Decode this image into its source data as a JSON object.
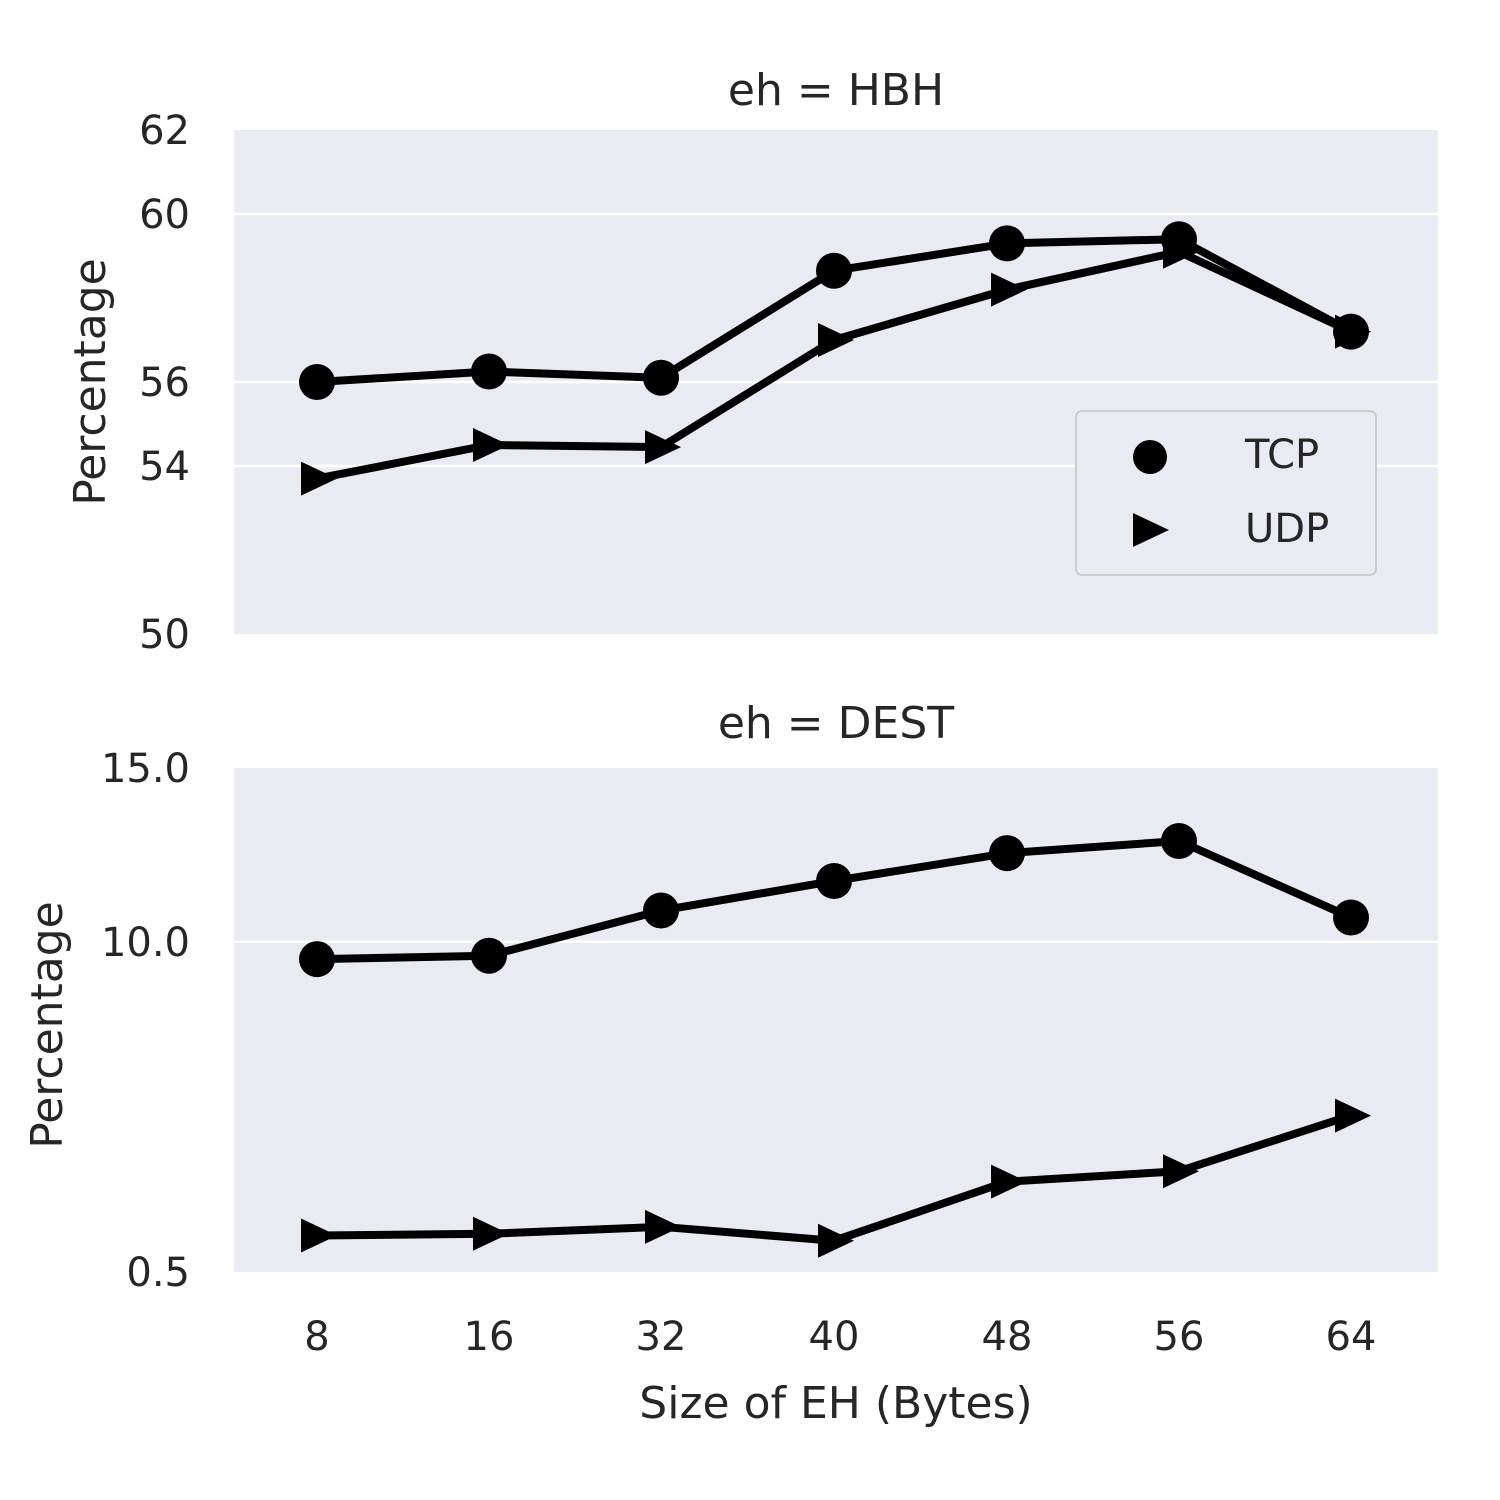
{
  "chart_data": [
    {
      "type": "line",
      "title": "eh = HBH",
      "ylabel": "Percentage",
      "xlabel": "",
      "categories": [
        "8",
        "16",
        "32",
        "40",
        "48",
        "56",
        "64"
      ],
      "ylim": [
        50,
        62
      ],
      "yticks": [
        "62",
        "60",
        "56",
        "54",
        "50"
      ],
      "ytick_values": [
        62,
        60,
        56,
        54,
        50
      ],
      "series": [
        {
          "name": "TCP",
          "marker": "circle",
          "values": [
            56.0,
            56.25,
            56.1,
            58.65,
            59.3,
            59.4,
            57.2
          ]
        },
        {
          "name": "UDP",
          "marker": "triangle-right",
          "values": [
            53.7,
            54.5,
            54.45,
            57.0,
            58.2,
            59.1,
            57.2
          ]
        }
      ],
      "legend": {
        "position": "right",
        "entries": [
          "TCP",
          "UDP"
        ]
      },
      "grid": true
    },
    {
      "type": "line",
      "title": "eh = DEST",
      "ylabel": "Percentage",
      "xlabel": "Size of EH (Bytes)",
      "categories": [
        "8",
        "16",
        "32",
        "40",
        "48",
        "56",
        "64"
      ],
      "ylim": [
        0.5,
        15.0
      ],
      "yticks": [
        "15.0",
        "10.0",
        "0.5"
      ],
      "ytick_values": [
        15.0,
        10.0,
        0.5
      ],
      "series": [
        {
          "name": "TCP",
          "marker": "circle",
          "values": [
            9.5,
            9.6,
            10.9,
            11.75,
            12.55,
            12.9,
            10.7
          ]
        },
        {
          "name": "UDP",
          "marker": "triangle-right",
          "values": [
            1.55,
            1.6,
            1.8,
            1.4,
            3.1,
            3.4,
            5.0
          ]
        }
      ],
      "grid": true
    }
  ],
  "colors": {
    "panel_bg": "#eaeaf2",
    "grid": "#ffffff",
    "line": "#000000",
    "text": "#262626"
  }
}
